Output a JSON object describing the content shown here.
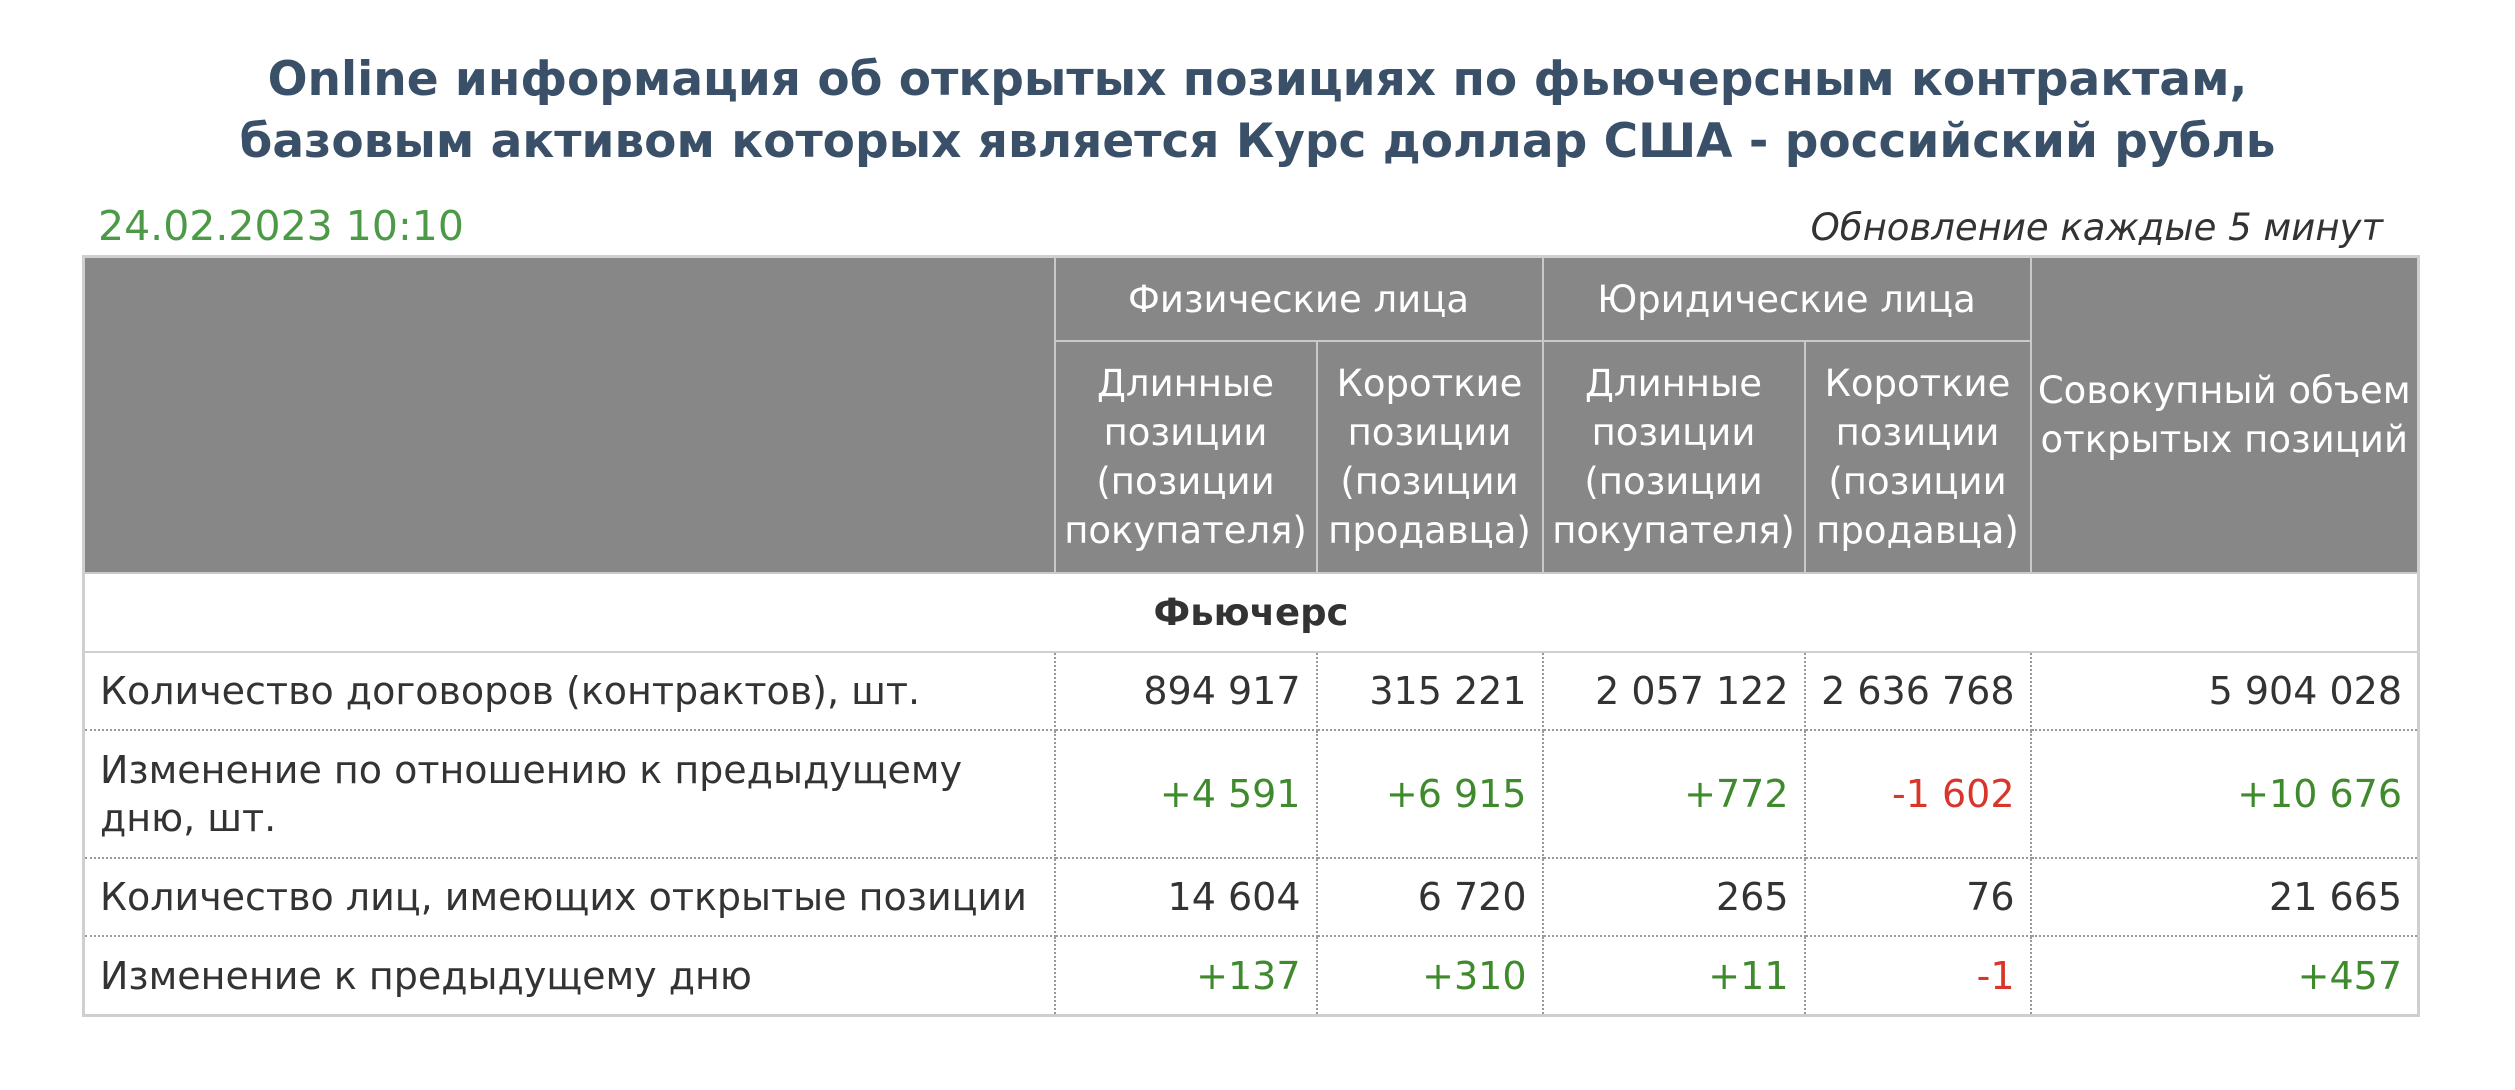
{
  "title": {
    "line1": "Online информация об открытых позициях по фьючерсным контрактам,",
    "line2": "базовым активом которых является Курс доллар США - российский рубль"
  },
  "timestamp": "24.02.2023 10:10",
  "update_note": "Обновление каждые 5 минут",
  "colors": {
    "title": "#3a5068",
    "timestamp": "#4c9a47",
    "header_bg": "#878787",
    "positive": "#3f8a2c",
    "negative": "#d9362b"
  },
  "table": {
    "groups": {
      "individuals": "Физические лица",
      "legal_entities": "Юридические лица",
      "total": "Совокупный объем открытых позиций"
    },
    "subheaders": {
      "long": "Длинные позиции (позиции покупателя)",
      "short": "Короткие позиции (позиции продавца)"
    },
    "section": "Фьючерс",
    "rows": [
      {
        "label": "Количество договоров (контрактов), шт.",
        "values": [
          "894 917",
          "315 221",
          "2 057 122",
          "2 636 768",
          "5 904 028"
        ]
      },
      {
        "label": "Изменение по отношению к предыдущему дню, шт.",
        "values": [
          "+4 591",
          "+6 915",
          "+772",
          "-1 602",
          "+10 676"
        ]
      },
      {
        "label": "Количество лиц, имеющих открытые позиции",
        "values": [
          "14 604",
          "6 720",
          "265",
          "76",
          "21 665"
        ]
      },
      {
        "label": "Изменение к предыдущему дню",
        "values": [
          "+137",
          "+310",
          "+11",
          "-1",
          "+457"
        ]
      }
    ]
  }
}
